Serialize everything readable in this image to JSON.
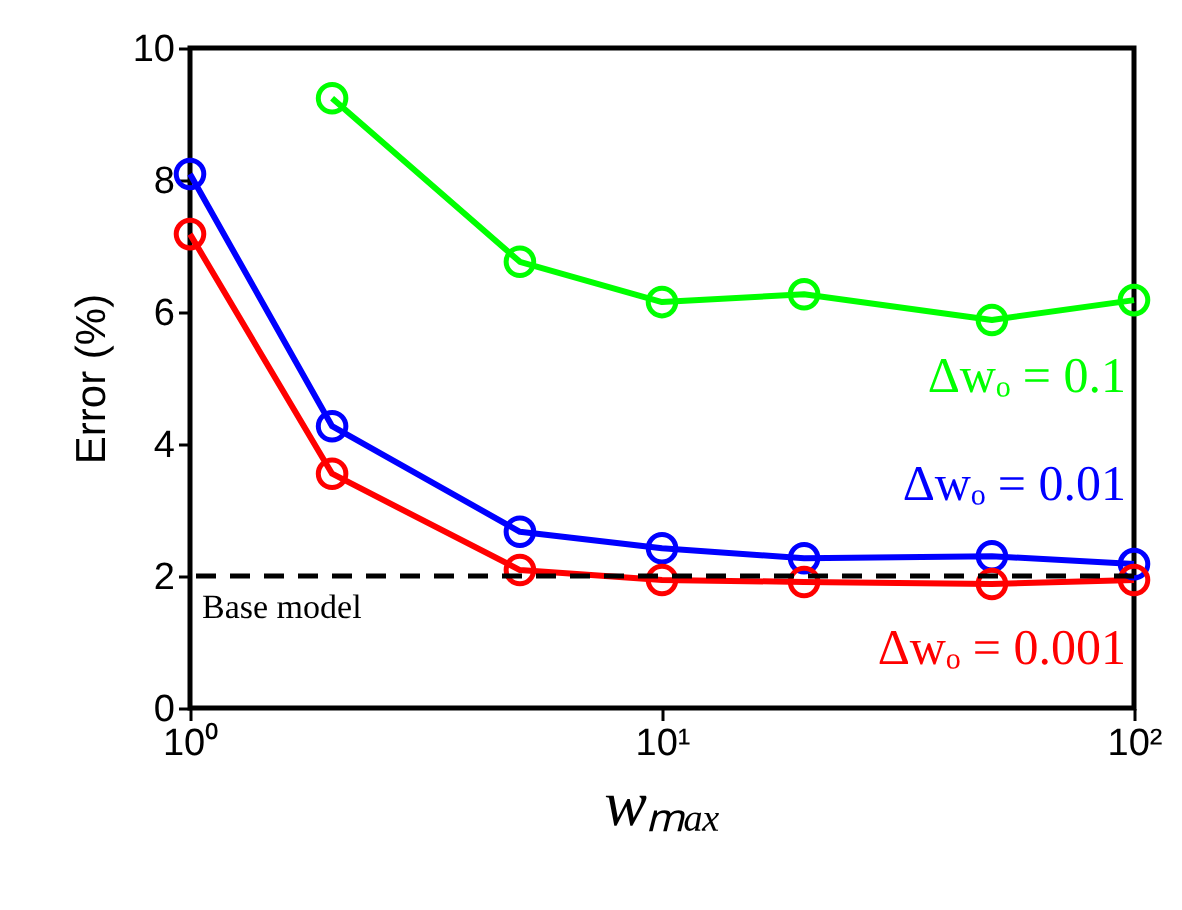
{
  "chart_data": {
    "type": "line",
    "xlabel": "wₘₐₓ",
    "ylabel": "Error (%)",
    "x": [
      1,
      2,
      5,
      10,
      20,
      50,
      100
    ],
    "series": [
      {
        "name": "Δwₒ = 0.1",
        "color": "#00ff00",
        "values": [
          null,
          9.24,
          6.76,
          6.15,
          6.27,
          5.88,
          6.18
        ]
      },
      {
        "name": "Δwₒ = 0.01",
        "color": "#0000ff",
        "values": [
          8.09,
          4.27,
          2.67,
          2.42,
          2.27,
          2.3,
          2.18
        ]
      },
      {
        "name": "Δwₒ = 0.001",
        "color": "#ff0000",
        "values": [
          7.18,
          3.55,
          2.09,
          1.94,
          1.91,
          1.88,
          1.94
        ]
      }
    ],
    "log": "x",
    "xlim": [
      1,
      100
    ],
    "xticks": [
      {
        "value": 1,
        "label": "10⁰"
      },
      {
        "value": 10,
        "label": "10¹"
      },
      {
        "value": 100,
        "label": "10²"
      }
    ],
    "ylim": [
      0,
      10
    ],
    "yticks": [
      0,
      2,
      4,
      6,
      8,
      10
    ],
    "ref_lines": [
      {
        "axis": "y",
        "value": 2,
        "label": "Base model",
        "color": "#000000",
        "line_style": "dashed"
      }
    ],
    "marker": "circle",
    "line_style": "solid",
    "grid": false,
    "legend": false
  }
}
